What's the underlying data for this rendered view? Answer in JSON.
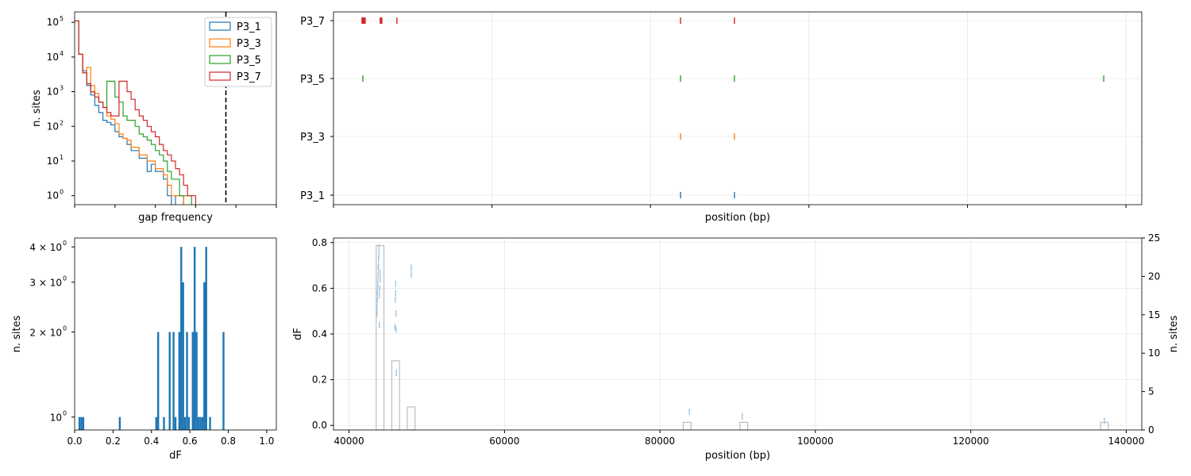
{
  "colors": {
    "P3_1": "#1f77b4",
    "P3_3": "#ff7f0e",
    "P3_5": "#2ca02c",
    "P3_7": "#d62728",
    "grey": "#b0b0b0",
    "grid": "#e6e6e6"
  },
  "chart_data": [
    {
      "id": "gap_hist",
      "type": "line",
      "style": "step histogram",
      "title": "",
      "xlabel": "gap frequency",
      "ylabel": "n. sites",
      "yscale": "log",
      "xlim": [
        0,
        1
      ],
      "ylim": [
        0.55,
        200000
      ],
      "yticks": [
        1,
        10,
        100,
        1000,
        10000,
        100000
      ],
      "ytick_labels": [
        "10",
        "10",
        "10",
        "10",
        "10",
        "10"
      ],
      "ytick_exponents": [
        "0",
        "1",
        "2",
        "3",
        "4",
        "5"
      ],
      "grid": false,
      "legend": "top-right",
      "threshold_line_x": 0.75,
      "bin_width": 0.02,
      "series": [
        {
          "name": "P3_1",
          "values": [
            110000,
            12000,
            4000,
            1500,
            800,
            400,
            250,
            150,
            130,
            110,
            70,
            50,
            45,
            30,
            20,
            20,
            12,
            12,
            5,
            8,
            5,
            5,
            3,
            1,
            0,
            1,
            1,
            0,
            0,
            0,
            0,
            0,
            0,
            0,
            0,
            0,
            0,
            0,
            0,
            0,
            0,
            0,
            0,
            0,
            0,
            0,
            0,
            0,
            0,
            0
          ]
        },
        {
          "name": "P3_3",
          "values": [
            110000,
            12000,
            3500,
            5000,
            1500,
            900,
            500,
            350,
            200,
            160,
            120,
            60,
            45,
            40,
            25,
            25,
            15,
            15,
            10,
            10,
            6,
            6,
            4,
            2,
            1,
            1,
            1,
            0,
            0,
            0,
            0,
            0,
            0,
            0,
            0,
            0,
            0,
            0,
            0,
            0,
            0,
            0,
            0,
            0,
            0,
            0,
            0,
            0,
            0,
            0
          ]
        },
        {
          "name": "P3_5",
          "values": [
            110000,
            12000,
            3500,
            1700,
            1000,
            700,
            500,
            350,
            2000,
            2000,
            700,
            500,
            200,
            150,
            150,
            100,
            60,
            50,
            40,
            30,
            20,
            15,
            10,
            5,
            3,
            3,
            1,
            1,
            1,
            0,
            0,
            0,
            0,
            0,
            0,
            0,
            0,
            0,
            0,
            0,
            0,
            0,
            0,
            0,
            0,
            0,
            0,
            0,
            0,
            0
          ]
        },
        {
          "name": "P3_7",
          "values": [
            110000,
            12000,
            3500,
            1700,
            1000,
            700,
            500,
            350,
            250,
            200,
            200,
            2000,
            2000,
            1000,
            600,
            300,
            200,
            150,
            100,
            70,
            50,
            30,
            20,
            15,
            10,
            6,
            4,
            2,
            1,
            1,
            0,
            0,
            0,
            0,
            0,
            0,
            0,
            0,
            0,
            0,
            0,
            0,
            0,
            0,
            0,
            0,
            0,
            0,
            0,
            0
          ]
        }
      ]
    },
    {
      "id": "positions",
      "type": "scatter",
      "title": "",
      "xlabel": "position (bp)",
      "ylabel": "",
      "xlim": [
        40000,
        142000
      ],
      "categories": [
        "P3_1",
        "P3_3",
        "P3_5",
        "P3_7"
      ],
      "grid": true,
      "series": [
        {
          "name": "P3_1",
          "x": [
            83800,
            90600
          ]
        },
        {
          "name": "P3_3",
          "x": [
            83800,
            90600
          ]
        },
        {
          "name": "P3_5",
          "x": [
            43700,
            83800,
            90600,
            137200
          ]
        },
        {
          "name": "P3_7",
          "x": [
            43600,
            43700,
            43800,
            43900,
            44000,
            45900,
            46000,
            46100,
            48000,
            83800,
            90600
          ]
        }
      ]
    },
    {
      "id": "df_hist",
      "type": "bar",
      "title": "",
      "xlabel": "dF",
      "ylabel": "n. sites",
      "yscale": "log",
      "xlim": [
        0,
        1.05
      ],
      "ylim": [
        0.9,
        4.3
      ],
      "xticks": [
        "0.0",
        "0.2",
        "0.4",
        "0.6",
        "0.8",
        "1.0"
      ],
      "yticks": [
        1,
        2,
        3,
        4
      ],
      "ytick_labels": [
        "10",
        "2 × 10",
        "3 × 10",
        "4 × 10"
      ],
      "ytick_exponent": "0",
      "bin_width": 0.01,
      "values": [
        {
          "x": 0.02,
          "v": 1
        },
        {
          "x": 0.03,
          "v": 1
        },
        {
          "x": 0.04,
          "v": 1
        },
        {
          "x": 0.23,
          "v": 1
        },
        {
          "x": 0.42,
          "v": 1
        },
        {
          "x": 0.43,
          "v": 2
        },
        {
          "x": 0.46,
          "v": 1
        },
        {
          "x": 0.49,
          "v": 2
        },
        {
          "x": 0.51,
          "v": 2
        },
        {
          "x": 0.52,
          "v": 1
        },
        {
          "x": 0.54,
          "v": 2
        },
        {
          "x": 0.55,
          "v": 4
        },
        {
          "x": 0.56,
          "v": 3
        },
        {
          "x": 0.57,
          "v": 1
        },
        {
          "x": 0.58,
          "v": 2
        },
        {
          "x": 0.59,
          "v": 1
        },
        {
          "x": 0.61,
          "v": 2
        },
        {
          "x": 0.62,
          "v": 4
        },
        {
          "x": 0.63,
          "v": 2
        },
        {
          "x": 0.64,
          "v": 1
        },
        {
          "x": 0.65,
          "v": 1
        },
        {
          "x": 0.66,
          "v": 1
        },
        {
          "x": 0.67,
          "v": 3
        },
        {
          "x": 0.68,
          "v": 4
        },
        {
          "x": 0.7,
          "v": 1
        },
        {
          "x": 0.77,
          "v": 2
        }
      ]
    },
    {
      "id": "df_position",
      "type": "scatter",
      "title": "",
      "xlabel": "position (bp)",
      "ylabel": "dF",
      "y2label": "n. sites",
      "xlim": [
        38000,
        142000
      ],
      "ylim": [
        -0.02,
        0.82
      ],
      "y2lim": [
        0,
        25
      ],
      "xticks": [
        40000,
        60000,
        80000,
        100000,
        120000,
        140000
      ],
      "yticks": [
        0.0,
        0.2,
        0.4,
        0.6,
        0.8
      ],
      "y2ticks": [
        0,
        5,
        10,
        15,
        20,
        25
      ],
      "grid": true,
      "points": [
        {
          "x": 43600,
          "y": 0.49
        },
        {
          "x": 43600,
          "y": 0.52
        },
        {
          "x": 43650,
          "y": 0.55
        },
        {
          "x": 43650,
          "y": 0.58
        },
        {
          "x": 43700,
          "y": 0.61
        },
        {
          "x": 43700,
          "y": 0.63
        },
        {
          "x": 43750,
          "y": 0.66
        },
        {
          "x": 43750,
          "y": 0.69
        },
        {
          "x": 43800,
          "y": 0.7
        },
        {
          "x": 43800,
          "y": 0.73
        },
        {
          "x": 43850,
          "y": 0.75
        },
        {
          "x": 43850,
          "y": 0.78
        },
        {
          "x": 43900,
          "y": 0.44
        },
        {
          "x": 43900,
          "y": 0.57
        },
        {
          "x": 43950,
          "y": 0.6
        },
        {
          "x": 44000,
          "y": 0.64
        },
        {
          "x": 44000,
          "y": 0.67
        },
        {
          "x": 45900,
          "y": 0.43
        },
        {
          "x": 45950,
          "y": 0.55
        },
        {
          "x": 46000,
          "y": 0.58
        },
        {
          "x": 46000,
          "y": 0.62
        },
        {
          "x": 46050,
          "y": 0.49
        },
        {
          "x": 46050,
          "y": 0.42
        },
        {
          "x": 46100,
          "y": 0.23
        },
        {
          "x": 48000,
          "y": 0.66
        },
        {
          "x": 48000,
          "y": 0.69
        },
        {
          "x": 83800,
          "y": 0.06
        },
        {
          "x": 90600,
          "y": 0.04
        },
        {
          "x": 137200,
          "y": 0.02
        }
      ],
      "hist_bins": [
        {
          "x0": 43500,
          "x1": 44500,
          "n": 24
        },
        {
          "x0": 45500,
          "x1": 46500,
          "n": 9
        },
        {
          "x0": 47500,
          "x1": 48500,
          "n": 3
        },
        {
          "x0": 83000,
          "x1": 84000,
          "n": 1
        },
        {
          "x0": 90300,
          "x1": 91300,
          "n": 1
        },
        {
          "x0": 136700,
          "x1": 137700,
          "n": 1
        }
      ]
    }
  ]
}
